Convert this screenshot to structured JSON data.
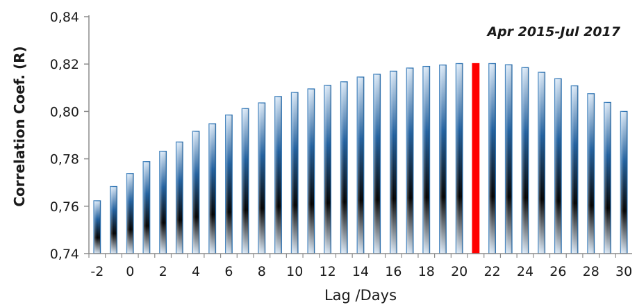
{
  "chart_data": {
    "type": "bar",
    "annotation": "Apr 2015-Jul 2017",
    "xlabel": "Lag /Days",
    "ylabel": "Correlation Coef. (R)",
    "ylim": [
      0.74,
      0.84
    ],
    "y_ticks": [
      "0,74",
      "0,76",
      "0,78",
      "0,80",
      "0,82",
      "0,84"
    ],
    "x_tick_values": [
      -2,
      0,
      2,
      4,
      6,
      8,
      10,
      12,
      14,
      16,
      18,
      20,
      22,
      24,
      26,
      28,
      30
    ],
    "x_ticks": [
      "-2",
      "0",
      "2",
      "4",
      "6",
      "8",
      "10",
      "12",
      "14",
      "16",
      "18",
      "20",
      "22",
      "24",
      "26",
      "28",
      "30"
    ],
    "x": [
      -2,
      -1,
      0,
      1,
      2,
      3,
      4,
      5,
      6,
      7,
      8,
      9,
      10,
      11,
      12,
      13,
      14,
      15,
      16,
      17,
      18,
      19,
      20,
      21,
      22,
      23,
      24,
      25,
      26,
      27,
      28,
      29,
      30
    ],
    "values": [
      0.7623,
      0.7683,
      0.7738,
      0.7788,
      0.7832,
      0.7871,
      0.7916,
      0.7948,
      0.7985,
      0.8012,
      0.8036,
      0.8063,
      0.808,
      0.8095,
      0.811,
      0.8125,
      0.8145,
      0.8157,
      0.817,
      0.8183,
      0.819,
      0.8196,
      0.8202,
      0.8202,
      0.8202,
      0.8197,
      0.8185,
      0.8165,
      0.8138,
      0.8108,
      0.8075,
      0.8038,
      0.8
    ],
    "highlight_x": 21,
    "colors": {
      "bar_edge": "#2e75b6",
      "bar_light": "#dbe9f7",
      "bar_mid": "#1f5f9e",
      "bar_dark": "#000000",
      "highlight": "#ff0000",
      "axis": "#8c8c8c"
    },
    "grid": false,
    "legend": "none"
  }
}
